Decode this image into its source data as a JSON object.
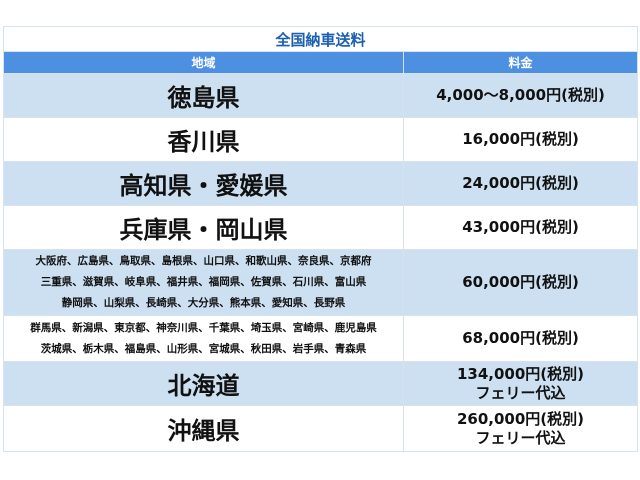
{
  "title": "全国納車送料",
  "headers": {
    "region": "地域",
    "fee": "料金"
  },
  "colors": {
    "header_bg": "#4d90e2",
    "row_alt_bg": "#cde0f2",
    "title_text": "#1c5fb0"
  },
  "rows": [
    {
      "region": [
        "徳島県"
      ],
      "fee": [
        "4,000～8,000円(税別)"
      ]
    },
    {
      "region": [
        "香川県"
      ],
      "fee": [
        "16,000円(税別)"
      ]
    },
    {
      "region": [
        "高知県・愛媛県"
      ],
      "fee": [
        "24,000円(税別)"
      ]
    },
    {
      "region": [
        "兵庫県・岡山県"
      ],
      "fee": [
        "43,000円(税別)"
      ]
    },
    {
      "region": [
        "大阪府、広島県、鳥取県、島根県、山口県、和歌山県、奈良県、京都府",
        "三重県、滋賀県、岐阜県、福井県、福岡県、佐賀県、石川県、富山県",
        "静岡県、山梨県、長崎県、大分県、熊本県、愛知県、長野県"
      ],
      "fee": [
        "60,000円(税別)"
      ]
    },
    {
      "region": [
        "群馬県、新潟県、東京都、神奈川県、千葉県、埼玉県、宮崎県、鹿児島県",
        "茨城県、栃木県、福島県、山形県、宮城県、秋田県、岩手県、青森県"
      ],
      "fee": [
        "68,000円(税別)"
      ]
    },
    {
      "region": [
        "北海道"
      ],
      "fee": [
        "134,000円(税別)",
        "フェリー代込"
      ]
    },
    {
      "region": [
        "沖縄県"
      ],
      "fee": [
        "260,000円(税別)",
        "フェリー代込"
      ]
    }
  ]
}
